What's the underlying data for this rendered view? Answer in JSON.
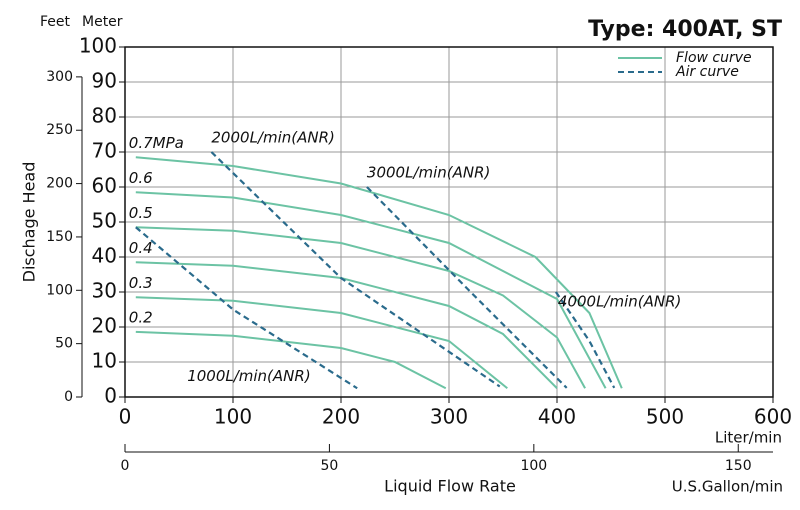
{
  "chart_data": {
    "type": "line",
    "title": "Type: 400AT, ST",
    "y_unit": "Meter",
    "y2_unit": "Feet",
    "y_label": "Dischage Head",
    "x_unit": "Liter/min",
    "x_label": "Liquid Flow Rate",
    "x2_unit": "U.S.Gallon/min",
    "xlim": [
      0,
      600
    ],
    "xticks": [
      0,
      100,
      200,
      300,
      400,
      500,
      600
    ],
    "ylim": [
      0,
      100
    ],
    "yticks": [
      0,
      10,
      20,
      30,
      40,
      50,
      60,
      70,
      80,
      90,
      100
    ],
    "y2lim": [
      0,
      328
    ],
    "y2ticks": [
      0,
      50,
      100,
      150,
      200,
      250,
      300
    ],
    "x2lim": [
      0,
      158.5
    ],
    "x2ticks": [
      0,
      50,
      100,
      150
    ],
    "grid": true,
    "legend_position": "upper right",
    "legend": [
      {
        "name": "Flow curve",
        "color": "#6cc3a4",
        "dashed": false
      },
      {
        "name": "Air curve",
        "color": "#2a6b8c",
        "dashed": true
      }
    ],
    "series": [
      {
        "name": "0.7MPa",
        "color": "#6cc3a4",
        "dashed": false,
        "x": [
          10,
          100,
          200,
          300,
          380,
          430,
          460
        ],
        "values": [
          68.5,
          66,
          61,
          52,
          40,
          24,
          2.5
        ]
      },
      {
        "name": "0.6",
        "color": "#6cc3a4",
        "dashed": false,
        "x": [
          10,
          100,
          200,
          300,
          400,
          445
        ],
        "values": [
          58.5,
          57,
          52,
          44,
          28,
          2.5
        ]
      },
      {
        "name": "0.5",
        "color": "#6cc3a4",
        "dashed": false,
        "x": [
          10,
          100,
          200,
          300,
          350,
          400,
          426
        ],
        "values": [
          48.5,
          47.5,
          44,
          36,
          29,
          17,
          2.5
        ]
      },
      {
        "name": "0.4",
        "color": "#6cc3a4",
        "dashed": false,
        "x": [
          10,
          100,
          200,
          300,
          350,
          400
        ],
        "values": [
          38.5,
          37.5,
          34,
          26,
          18,
          2.5
        ]
      },
      {
        "name": "0.3",
        "color": "#6cc3a4",
        "dashed": false,
        "x": [
          10,
          100,
          200,
          300,
          354
        ],
        "values": [
          28.5,
          27.5,
          24,
          16,
          2.5
        ]
      },
      {
        "name": "0.2",
        "color": "#6cc3a4",
        "dashed": false,
        "x": [
          10,
          100,
          200,
          250,
          297
        ],
        "values": [
          18.6,
          17.5,
          14,
          10,
          2.5
        ]
      },
      {
        "name": "1000L/min(ANR)",
        "color": "#2a6b8c",
        "dashed": true,
        "x": [
          10,
          100,
          215
        ],
        "values": [
          48.5,
          25,
          2.5
        ]
      },
      {
        "name": "2000L/min(ANR)",
        "color": "#2a6b8c",
        "dashed": true,
        "x": [
          80,
          200,
          347
        ],
        "values": [
          70,
          34,
          3
        ]
      },
      {
        "name": "3000L/min(ANR)",
        "color": "#2a6b8c",
        "dashed": true,
        "x": [
          224,
          320,
          409
        ],
        "values": [
          60,
          30,
          2.6
        ]
      },
      {
        "name": "4000L/min(ANR)",
        "color": "#2a6b8c",
        "dashed": true,
        "x": [
          399,
          430,
          453
        ],
        "values": [
          30,
          16,
          2.6
        ]
      }
    ]
  }
}
